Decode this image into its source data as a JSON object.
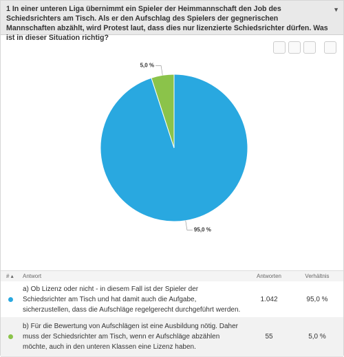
{
  "question": "1 In einer unteren Liga übernimmt ein Spieler der Heimmannschaft den Job des Schiedsrichters am Tisch. Als er den Aufschlag des Spielers der gegnerischen Mannschaften abzählt, wird Protest laut, dass dies nur lizenzierte Schiedsrichter dürfen. Was ist in dieser Situation richtig?",
  "chart_data": {
    "type": "pie",
    "values": [
      95.0,
      5.0
    ],
    "value_labels": [
      "95,0 %",
      "5,0 %"
    ],
    "colors": [
      "#29a8e0",
      "#8bc34a"
    ]
  },
  "table": {
    "headers": [
      "#",
      "Antwort",
      "Antworten",
      "Verhältnis"
    ],
    "rows": [
      {
        "answer": "a) Ob Lizenz oder nicht - in diesem Fall ist der Spieler der Schiedsrichter am Tisch und hat damit auch die Aufgabe, sicherzustellen, dass die Aufschläge regelgerecht durchgeführt werden.",
        "count": "1.042",
        "percent": "95,0 %"
      },
      {
        "answer": "b) Für die Bewertung von Aufschlägen ist eine Ausbildung nötig. Daher muss der Schiedsrichter am Tisch, wenn er Aufschläge abzählen möchte, auch in den unteren Klassen eine Lizenz haben.",
        "count": "55",
        "percent": "5,0 %"
      }
    ]
  }
}
